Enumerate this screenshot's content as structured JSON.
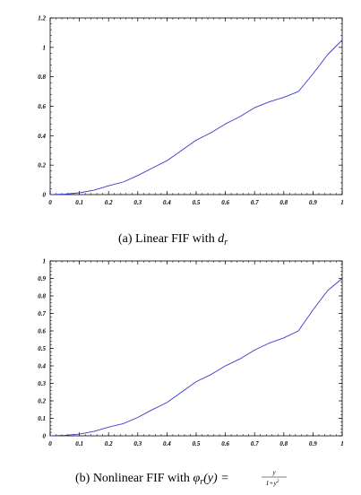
{
  "chart_data": [
    {
      "type": "line",
      "caption_prefix": "(a) Linear FIF with ",
      "caption_math": "d",
      "caption_sub": "r",
      "xlim": [
        0,
        1
      ],
      "ylim": [
        0,
        1.2
      ],
      "xticks": [
        "0",
        "0.1",
        "0.2",
        "0.3",
        "0.4",
        "0.5",
        "0.6",
        "0.7",
        "0.8",
        "0.9",
        "1"
      ],
      "yticks": [
        "0",
        "0.2",
        "0.4",
        "0.6",
        "0.8",
        "1",
        "1.2"
      ],
      "grid": false,
      "line_color": "#3a3acc",
      "x": [
        0,
        0.05,
        0.1,
        0.15,
        0.2,
        0.25,
        0.3,
        0.35,
        0.4,
        0.45,
        0.5,
        0.55,
        0.6,
        0.65,
        0.7,
        0.75,
        0.8,
        0.85,
        0.9,
        0.95,
        1
      ],
      "y": [
        0,
        0.003,
        0.012,
        0.03,
        0.06,
        0.085,
        0.13,
        0.18,
        0.23,
        0.3,
        0.37,
        0.42,
        0.48,
        0.53,
        0.59,
        0.63,
        0.66,
        0.7,
        0.82,
        0.95,
        1.05
      ]
    },
    {
      "type": "line",
      "caption_prefix": "(b) Nonlinear FIF with ",
      "caption_math": "φ",
      "caption_sub": "r",
      "caption_arg": "(y) =",
      "caption_frac_num": "y",
      "caption_frac_den": "1+y",
      "caption_frac_den_sup": "2",
      "xlim": [
        0,
        1
      ],
      "ylim": [
        0,
        1
      ],
      "xticks": [
        "0",
        "0.1",
        "0.2",
        "0.3",
        "0.4",
        "0.5",
        "0.6",
        "0.7",
        "0.8",
        "0.9",
        "1"
      ],
      "yticks": [
        "0",
        "0.1",
        "0.2",
        "0.3",
        "0.4",
        "0.5",
        "0.6",
        "0.7",
        "0.8",
        "0.9",
        "1"
      ],
      "grid": false,
      "line_color": "#3a3acc",
      "x": [
        0,
        0.05,
        0.1,
        0.15,
        0.2,
        0.25,
        0.3,
        0.35,
        0.4,
        0.45,
        0.5,
        0.55,
        0.6,
        0.65,
        0.7,
        0.75,
        0.8,
        0.85,
        0.9,
        0.95,
        1
      ],
      "y": [
        0,
        0.003,
        0.01,
        0.025,
        0.05,
        0.07,
        0.105,
        0.15,
        0.19,
        0.25,
        0.31,
        0.35,
        0.4,
        0.44,
        0.49,
        0.53,
        0.56,
        0.6,
        0.72,
        0.83,
        0.9
      ]
    }
  ]
}
